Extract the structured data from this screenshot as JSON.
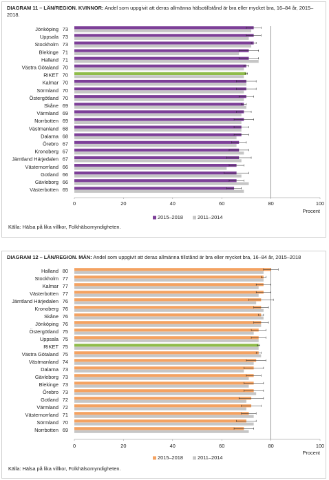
{
  "chart_data": [
    {
      "type": "bar",
      "orientation": "horizontal",
      "title": "DIAGRAM 11 – LÄN/REGION. KVINNOR:",
      "subtitle": "Andel som uppgivit att deras allmänna hälsotillstånd är bra eller mycket bra, 16–84 år, 2015–2018.",
      "categories": [
        "Jönköping",
        "Uppsala",
        "Stockholm",
        "Blekinge",
        "Halland",
        "Västra Götaland",
        "RIKET",
        "Kalmar",
        "Sörmland",
        "Östergötland",
        "Skåne",
        "Värmland",
        "Norrbotten",
        "Västmanland",
        "Dalarna",
        "Örebro",
        "Kronoberg",
        "Jämtland Härjedalen",
        "Västernorrland",
        "Gotland",
        "Gävleborg",
        "Västerbotten"
      ],
      "series": [
        {
          "name": "2015–2018",
          "color": "#7d3f98",
          "values": [
            73,
            73,
            73,
            71,
            71,
            70,
            70,
            70,
            70,
            70,
            69,
            69,
            69,
            68,
            68,
            67,
            67,
            67,
            66,
            66,
            66,
            65
          ],
          "errors": [
            3,
            3,
            1,
            4,
            4,
            1,
            0.5,
            4,
            4,
            3,
            1,
            3,
            4,
            3,
            3,
            3,
            4,
            5,
            3,
            5,
            3,
            3
          ]
        },
        {
          "name": "2011–2014",
          "color": "#c6c6c6",
          "values": [
            72,
            71,
            72,
            67,
            75,
            69,
            69,
            70,
            69,
            69,
            70,
            68,
            68,
            68,
            66,
            66,
            69,
            68,
            62,
            68,
            71,
            69
          ]
        }
      ],
      "highlight": "RIKET",
      "highlight_color": "#8fbc4a",
      "xlim": [
        0,
        100
      ],
      "xticks": [
        0,
        20,
        40,
        60,
        80,
        100
      ],
      "reference_line": 80,
      "xlabel": "Procent",
      "source": "Källa: Hälsa på lika villkor, Folkhälsomyndigheten."
    },
    {
      "type": "bar",
      "orientation": "horizontal",
      "title": "DIAGRAM 12 – LÄN/REGION. MÄN:",
      "subtitle": "Andel som uppgivit att deras allmänna tillstånd är bra eller mycket bra, 16–84 år, 2015–2018",
      "categories": [
        "Halland",
        "Stockholm",
        "Kalmar",
        "Västerbotten",
        "Jämtland Härjedalen",
        "Kronoberg",
        "Skåne",
        "Jönköping",
        "Östergötland",
        "Uppsala",
        "RIKET",
        "Västra Götaland",
        "Västmanland",
        "Dalarna",
        "Gävleborg",
        "Blekinge",
        "Örebro",
        "Gotland",
        "Värmland",
        "Västernorrland",
        "Sörmland",
        "Norrbotten"
      ],
      "series": [
        {
          "name": "2015–2018",
          "color": "#f4a261",
          "values": [
            80,
            77,
            77,
            77,
            76,
            76,
            76,
            76,
            75,
            75,
            75,
            75,
            74,
            73,
            73,
            73,
            73,
            72,
            72,
            71,
            70,
            69
          ],
          "errors": [
            3,
            1,
            3,
            3,
            5,
            3,
            1,
            3,
            3,
            3,
            0.5,
            1,
            4,
            4,
            3,
            4,
            4,
            5,
            4,
            3,
            4,
            4
          ]
        },
        {
          "name": "2011–2014",
          "color": "#c6c6c6",
          "values": [
            77,
            77,
            75,
            75,
            74,
            77,
            77,
            76,
            73,
            75,
            75,
            76,
            73,
            69,
            71,
            71,
            74,
            70,
            70,
            73,
            73,
            71
          ]
        }
      ],
      "highlight": "RIKET",
      "highlight_color": "#8fbc4a",
      "xlim": [
        0,
        100
      ],
      "xticks": [
        0,
        20,
        40,
        60,
        80,
        100
      ],
      "reference_line": 80,
      "xlabel": "Procent",
      "source": "Källa: Hälsa på lika villkor, Folkhälsomyndigheten."
    }
  ]
}
